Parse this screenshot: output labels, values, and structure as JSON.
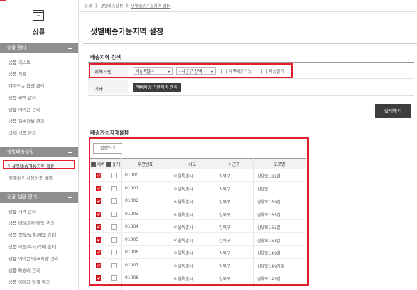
{
  "breadcrumb": [
    "상품",
    "샛별배송설정",
    "샛별배송가능지역 설정"
  ],
  "sidebar": {
    "title": "상품",
    "sections": [
      {
        "title": "상품 관리",
        "items": [
          "상품 리스트",
          "상품 등록",
          "자주쓰는 옵션 관리",
          "상품 혜택 관리",
          "상품 아이콘 관리",
          "상품 필수정보 관리",
          "삭제 상품 관리"
        ]
      },
      {
        "title": "샛별배송설정",
        "items": [
          "샛별배송가능지역 설정",
          "샛별배송 사용상품 설정"
        ]
      },
      {
        "title": "상품 일괄 관리",
        "items": [
          "상품 가격 관리",
          "상품 마일리지/혜택 관리",
          "상품 품절/노출/재고 관리",
          "상품 이동/복사/삭제 관리",
          "상품 아이콘/대표색상 관리",
          "상품 배송비 관리",
          "상품 이미지 일괄 처리"
        ]
      }
    ]
  },
  "page_title": "샛별배송가능지역 설정",
  "search": {
    "title": "배송지역 검색",
    "region_label": "지역선택",
    "sido_select": "서울특별시",
    "sigungu_select": "- 시군구 선택 -",
    "check_dawn": "새벽배송가능",
    "check_unavailable": "배송불가",
    "etc_label": "기타",
    "etc_button": "택배배송 전환지역 관리",
    "search_button": "검색하기"
  },
  "list": {
    "title": "배송가능지역설정",
    "set_button": "설정하기",
    "columns": [
      "새벽",
      "불가",
      "우편번호",
      "시도",
      "시군구",
      "도로명"
    ],
    "rows": [
      {
        "dawn": true,
        "unavailable": false,
        "zip": "01000",
        "sido": "서울특별시",
        "sigungu": "강북구",
        "road": "삼양로181길"
      },
      {
        "dawn": true,
        "unavailable": false,
        "zip": "01001",
        "sido": "서울특별시",
        "sigungu": "강북구",
        "road": "삼양로"
      },
      {
        "dawn": true,
        "unavailable": false,
        "zip": "01002",
        "sido": "서울특별시",
        "sigungu": "강북구",
        "road": "삼양로169길"
      },
      {
        "dawn": true,
        "unavailable": false,
        "zip": "01003",
        "sido": "서울특별시",
        "sigungu": "강북구",
        "road": "삼양로163길"
      },
      {
        "dawn": true,
        "unavailable": false,
        "zip": "01004",
        "sido": "서울특별시",
        "sigungu": "강북구",
        "road": "삼양로165길"
      },
      {
        "dawn": true,
        "unavailable": false,
        "zip": "01005",
        "sido": "서울특별시",
        "sigungu": "강북구",
        "road": "삼양로163길"
      },
      {
        "dawn": true,
        "unavailable": false,
        "zip": "01006",
        "sido": "서울특별시",
        "sigungu": "강북구",
        "road": "삼양로149길"
      },
      {
        "dawn": true,
        "unavailable": false,
        "zip": "01007",
        "sido": "서울특별시",
        "sigungu": "강북구",
        "road": "삼양로149가길"
      },
      {
        "dawn": true,
        "unavailable": false,
        "zip": "01008",
        "sido": "서울특별시",
        "sigungu": "강북구",
        "road": "삼양로145길"
      }
    ]
  }
}
